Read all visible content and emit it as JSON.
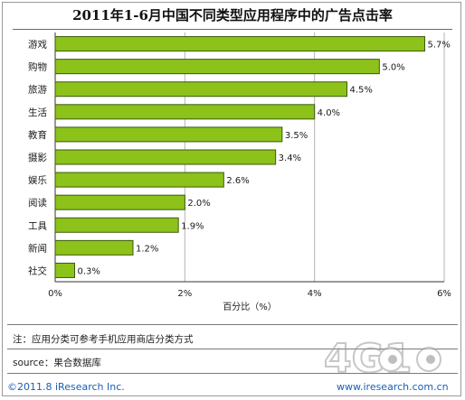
{
  "chart_data": {
    "type": "bar",
    "orientation": "horizontal",
    "title": "2011年1-6月中国不同类型应用程序中的广告点击率",
    "xlabel": "百分比（%）",
    "ylabel": "",
    "categories": [
      "游戏",
      "购物",
      "旅游",
      "生活",
      "教育",
      "摄影",
      "娱乐",
      "阅读",
      "工具",
      "新闻",
      "社交"
    ],
    "values": [
      5.7,
      5.0,
      4.5,
      4.0,
      3.5,
      3.4,
      2.6,
      2.0,
      1.9,
      1.2,
      0.3
    ],
    "value_labels": [
      "5.7%",
      "5.0%",
      "4.5%",
      "4.0%",
      "3.5%",
      "3.4%",
      "2.6%",
      "2.0%",
      "1.9%",
      "1.2%",
      "0.3%"
    ],
    "xlim": [
      0,
      6
    ],
    "xticks": [
      0,
      2,
      4,
      6
    ],
    "xtick_labels": [
      "0%",
      "2%",
      "4%",
      "6%"
    ],
    "grid": "vertical",
    "bar_color": "#8cc21a",
    "bar_edge_color": "#3d5a0c"
  },
  "footer": {
    "note": "注：应用分类可参考手机应用商店分类方式",
    "source": "source：果合数据库",
    "copyright": "©2011.8 iResearch Inc.",
    "site": "www.iresearch.com.cn"
  },
  "watermark": {
    "logo_text": "4G1",
    "icon": "mascot-eyes-icon"
  }
}
